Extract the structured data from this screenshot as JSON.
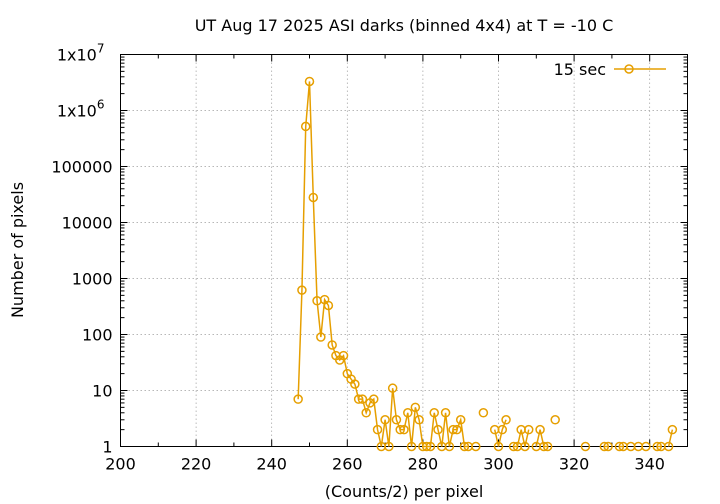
{
  "chart_data": {
    "type": "line",
    "title": "UT Aug 17 2025 ASI darks (binned 4x4) at T = -10 C",
    "xlabel": "(Counts/2) per pixel",
    "ylabel": "Number of pixels",
    "xlim": [
      200,
      350
    ],
    "ylim": [
      1,
      10000000
    ],
    "y_scale": "log",
    "grid": true,
    "legend_position": "top-right",
    "x_ticks": [
      {
        "value": 200,
        "label": "200"
      },
      {
        "value": 220,
        "label": "220"
      },
      {
        "value": 240,
        "label": "240"
      },
      {
        "value": 260,
        "label": "260"
      },
      {
        "value": 280,
        "label": "280"
      },
      {
        "value": 300,
        "label": "300"
      },
      {
        "value": 320,
        "label": "320"
      },
      {
        "value": 340,
        "label": "340"
      }
    ],
    "y_ticks": [
      {
        "value": 1,
        "label": "1"
      },
      {
        "value": 10,
        "label": "10"
      },
      {
        "value": 100,
        "label": "100"
      },
      {
        "value": 1000,
        "label": "1000"
      },
      {
        "value": 10000,
        "label": "10000"
      },
      {
        "value": 100000,
        "label": "100000"
      },
      {
        "value": 1000000,
        "label": "1x10",
        "exp": "6"
      },
      {
        "value": 10000000,
        "label": "1x10",
        "exp": "7"
      }
    ],
    "series": [
      {
        "name": "15 sec",
        "color": "#e69f00",
        "marker": "open-circle",
        "points": [
          [
            247,
            7
          ],
          [
            248,
            620
          ],
          [
            249,
            520000
          ],
          [
            250,
            3300000
          ],
          [
            251,
            28000
          ],
          [
            252,
            400
          ],
          [
            253,
            90
          ],
          [
            254,
            420
          ],
          [
            255,
            330
          ],
          [
            256,
            65
          ],
          [
            257,
            42
          ],
          [
            258,
            35
          ],
          [
            259,
            42
          ],
          [
            260,
            20
          ],
          [
            261,
            16
          ],
          [
            262,
            13
          ],
          [
            263,
            7
          ],
          [
            264,
            7
          ],
          [
            265,
            4
          ],
          [
            266,
            6
          ],
          [
            267,
            7
          ],
          [
            268,
            2
          ],
          [
            269,
            1
          ],
          [
            270,
            3
          ],
          [
            271,
            1
          ],
          [
            272,
            11
          ],
          [
            273,
            3
          ],
          [
            274,
            2
          ],
          [
            275,
            2
          ],
          [
            276,
            4
          ],
          [
            277,
            1
          ],
          [
            278,
            5
          ],
          [
            279,
            3
          ],
          [
            280,
            1
          ],
          [
            281,
            1
          ],
          [
            282,
            1
          ],
          [
            283,
            4
          ],
          [
            284,
            2
          ],
          [
            285,
            1
          ],
          [
            286,
            4
          ],
          [
            287,
            1
          ],
          [
            288,
            2
          ],
          [
            289,
            2
          ],
          [
            290,
            3
          ],
          [
            291,
            1
          ],
          [
            292,
            1
          ],
          [
            294,
            1
          ],
          [
            296,
            4
          ],
          [
            299,
            2
          ],
          [
            300,
            1
          ],
          [
            301,
            2
          ],
          [
            302,
            3
          ],
          [
            304,
            1
          ],
          [
            305,
            1
          ],
          [
            306,
            2
          ],
          [
            307,
            1
          ],
          [
            308,
            2
          ],
          [
            310,
            1
          ],
          [
            311,
            2
          ],
          [
            312,
            1
          ],
          [
            313,
            1
          ],
          [
            315,
            3
          ],
          [
            323,
            1
          ],
          [
            328,
            1
          ],
          [
            329,
            1
          ],
          [
            332,
            1
          ],
          [
            333,
            1
          ],
          [
            335,
            1
          ],
          [
            337,
            1
          ],
          [
            339,
            1
          ],
          [
            342,
            1
          ],
          [
            343,
            1
          ],
          [
            345,
            1
          ],
          [
            346,
            2
          ]
        ]
      }
    ]
  }
}
